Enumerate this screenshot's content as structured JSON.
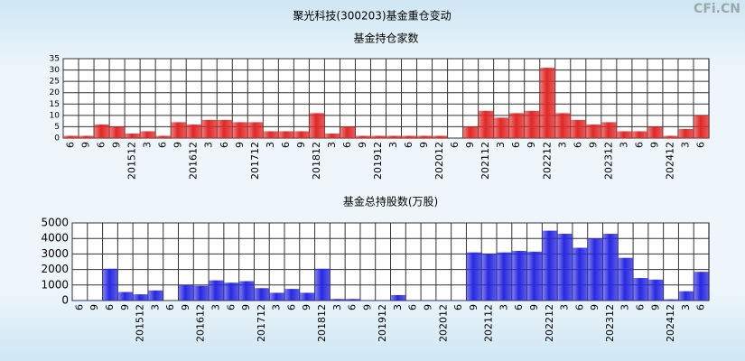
{
  "title": "聚光科技(300203)基金重仓变动",
  "watermark": "CFi.CN",
  "chart_data": [
    {
      "type": "bar",
      "title": "基金持仓家数",
      "color": "#e02828",
      "categories": [
        "6",
        "9",
        "6",
        "9",
        "201512",
        "3",
        "6",
        "9",
        "201612",
        "3",
        "6",
        "9",
        "201712",
        "3",
        "6",
        "9",
        "201812",
        "3",
        "6",
        "9",
        "201912",
        "3",
        "6",
        "9",
        "202012",
        "6",
        "9",
        "202112",
        "3",
        "6",
        "9",
        "202212",
        "3",
        "6",
        "9",
        "202312",
        "3",
        "6",
        "9",
        "202412",
        "3",
        "6"
      ],
      "values": [
        1,
        1,
        6,
        5,
        2,
        3,
        1,
        7,
        6,
        8,
        8,
        7,
        7,
        3,
        3,
        3,
        11,
        2,
        5,
        1,
        1,
        1,
        1,
        1,
        1,
        0,
        5,
        12,
        9,
        11,
        12,
        31,
        11,
        8,
        6,
        7,
        3,
        3,
        5,
        1,
        4,
        10
      ],
      "ylim": [
        0,
        35
      ],
      "yticks": [
        0,
        5,
        10,
        15,
        20,
        25,
        30,
        35
      ],
      "grid": true
    },
    {
      "type": "bar",
      "title": "基金总持股数(万股)",
      "color": "#2828e0",
      "categories": [
        "6",
        "9",
        "6",
        "9",
        "201512",
        "3",
        "6",
        "9",
        "201612",
        "3",
        "6",
        "9",
        "201712",
        "3",
        "6",
        "9",
        "201812",
        "3",
        "6",
        "9",
        "201912",
        "3",
        "6",
        "9",
        "202012",
        "6",
        "9",
        "202112",
        "3",
        "6",
        "9",
        "202212",
        "3",
        "6",
        "9",
        "202312",
        "3",
        "6",
        "9",
        "202412",
        "3",
        "6"
      ],
      "values": [
        30,
        30,
        2050,
        550,
        400,
        650,
        0,
        1000,
        950,
        1300,
        1150,
        1250,
        800,
        500,
        750,
        500,
        2050,
        100,
        100,
        30,
        30,
        350,
        30,
        30,
        30,
        30,
        3100,
        3000,
        3100,
        3200,
        3150,
        4500,
        4300,
        3400,
        4000,
        4300,
        2750,
        1450,
        1350,
        80,
        600,
        1850
      ],
      "ylim": [
        0,
        5000
      ],
      "yticks": [
        0,
        1000,
        2000,
        3000,
        4000,
        5000
      ],
      "grid": true
    }
  ]
}
